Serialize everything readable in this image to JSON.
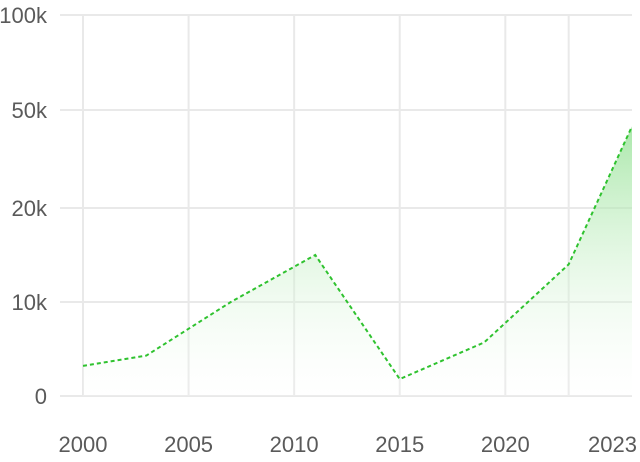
{
  "chart_data": {
    "type": "area",
    "title": "",
    "xlabel": "",
    "ylabel": "",
    "x": [
      2000,
      2003,
      2007,
      2011,
      2015,
      2019,
      2023,
      2026
    ],
    "series": [
      {
        "values": [
          3200,
          4300,
          10000,
          15000,
          1800,
          5700,
          14000,
          45000
        ]
      }
    ],
    "y_scale": "custom-breaks",
    "y_ticks": [
      0,
      10000,
      20000,
      50000,
      100000
    ],
    "y_tick_labels": [
      "0",
      "10k",
      "20k",
      "50k",
      "100k"
    ],
    "x_ticks": [
      2000,
      2005,
      2010,
      2015,
      2020,
      2023
    ],
    "x_tick_labels": [
      "2000",
      "2005",
      "2010",
      "2015",
      "2020",
      "2023"
    ],
    "xlim": [
      2000,
      2026
    ],
    "ylim": [
      0,
      100000
    ],
    "grid": true,
    "legend": "none",
    "colors": {
      "line": "#2fc22f",
      "fill_top": "#8fe08f",
      "fill_bottom": "#ffffff",
      "grid": "#e9e9e9",
      "tick_text": "#5a5a5a"
    }
  }
}
